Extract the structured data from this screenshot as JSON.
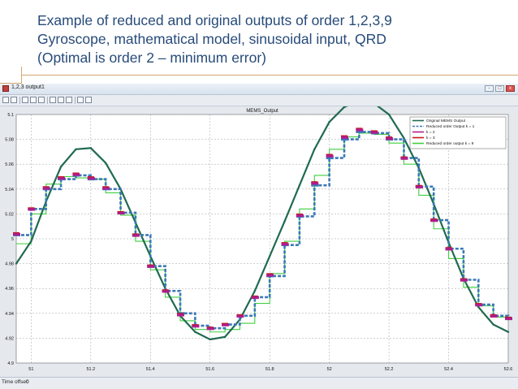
{
  "slide": {
    "title_lines": [
      "Example of reduced and original outputs of order 1,2,3,9",
      "Gyroscope, mathematical model, sinusoidal input, QRD",
      "(Optimal is order 2 – minimum error)"
    ]
  },
  "window": {
    "title": "1,2,3 output1",
    "controls": {
      "minimize": "-",
      "maximize": "□",
      "close": "x"
    },
    "toolbar_icons": [
      "print-icon",
      "settings-icon",
      "zoom-in-icon",
      "zoom-x-icon",
      "zoom-y-icon",
      "autoscale-icon",
      "save-axes-icon",
      "restore-axes-icon",
      "parameters-icon",
      "dock-icon"
    ],
    "status": {
      "label": "Time offset:",
      "value": "0"
    }
  },
  "chart_data": {
    "type": "line",
    "title": "MEMS_Output",
    "xlim": [
      50.95,
      52.6
    ],
    "ylim": [
      4.9,
      5.1
    ],
    "x_ticks": [
      51,
      51.2,
      51.4,
      51.6,
      51.8,
      52,
      52.2,
      52.4,
      52.6
    ],
    "x_tick_labels": [
      "51",
      "51.2",
      "51.4",
      "51.6",
      "51.8",
      "52",
      "52.2",
      "52.4",
      "52.6"
    ],
    "y_ticks": [
      4.9,
      4.92,
      4.94,
      4.96,
      4.98,
      5,
      5.02,
      5.04,
      5.06,
      5.08,
      5.1
    ],
    "y_tick_labels": [
      "4.9",
      "4.92",
      "4.94",
      "4.96",
      "4.98",
      "5",
      "5.02",
      "5.04",
      "5.06",
      "5.08",
      "5.1"
    ],
    "grid": true,
    "legend_position": "top-right",
    "series": [
      {
        "name": "Original MEMS Output",
        "color": "#1f6b50",
        "style": "solid-markers",
        "x": [
          50.95,
          51.0,
          51.05,
          51.1,
          51.15,
          51.2,
          51.25,
          51.3,
          51.35,
          51.4,
          51.45,
          51.5,
          51.55,
          51.6,
          51.65,
          51.7,
          51.75,
          51.8,
          51.85,
          51.9,
          51.95,
          52.0,
          52.05,
          52.1,
          52.15,
          52.2,
          52.25,
          52.3,
          52.35,
          52.4,
          52.45,
          52.5,
          52.55,
          52.6
        ],
        "y": [
          4.98,
          4.998,
          5.03,
          5.058,
          5.072,
          5.073,
          5.061,
          5.04,
          5.013,
          4.986,
          4.96,
          4.938,
          4.925,
          4.919,
          4.921,
          4.935,
          4.958,
          4.986,
          5.014,
          5.043,
          5.072,
          5.094,
          5.106,
          5.111,
          5.109,
          5.1,
          5.081,
          5.057,
          5.028,
          4.997,
          4.968,
          4.945,
          4.931,
          4.925
        ]
      },
      {
        "name": "Reduced order Output k = 1",
        "color": "#3a78b8",
        "style": "dashed",
        "x": [
          50.95,
          51.0,
          51.05,
          51.1,
          51.15,
          51.2,
          51.25,
          51.3,
          51.35,
          51.4,
          51.45,
          51.5,
          51.55,
          51.6,
          51.65,
          51.7,
          51.75,
          51.8,
          51.85,
          51.9,
          51.95,
          52.0,
          52.05,
          52.1,
          52.15,
          52.2,
          52.25,
          52.3,
          52.35,
          52.4,
          52.45,
          52.5,
          52.55,
          52.6
        ],
        "y": [
          5.003,
          5.024,
          5.04,
          5.048,
          5.051,
          5.048,
          5.04,
          5.021,
          5.003,
          4.978,
          4.958,
          4.94,
          4.93,
          4.928,
          4.931,
          4.938,
          4.953,
          4.97,
          4.995,
          5.018,
          5.043,
          5.065,
          5.08,
          5.086,
          5.085,
          5.08,
          5.065,
          5.042,
          5.015,
          4.992,
          4.967,
          4.947,
          4.938,
          4.936
        ]
      },
      {
        "name": "k = 2",
        "color": "#b01c8c",
        "style": "markers",
        "x": [
          50.95,
          51.0,
          51.05,
          51.1,
          51.15,
          51.2,
          51.25,
          51.3,
          51.35,
          51.4,
          51.45,
          51.5,
          51.55,
          51.6,
          51.65,
          51.7,
          51.75,
          51.8,
          51.85,
          51.9,
          51.95,
          52.0,
          52.05,
          52.1,
          52.15,
          52.2,
          52.25,
          52.3,
          52.35,
          52.4,
          52.45,
          52.5,
          52.55,
          52.6
        ],
        "y": [
          5.003,
          5.023,
          5.04,
          5.048,
          5.051,
          5.048,
          5.04,
          5.02,
          5.002,
          4.977,
          4.957,
          4.938,
          4.929,
          4.927,
          4.93,
          4.937,
          4.952,
          4.97,
          4.995,
          5.018,
          5.044,
          5.066,
          5.081,
          5.087,
          5.085,
          5.08,
          5.064,
          5.041,
          5.014,
          4.991,
          4.966,
          4.946,
          4.937,
          4.935
        ]
      },
      {
        "name": "k = 3",
        "color": "#c41818",
        "style": "markers",
        "x": [
          50.95,
          51.0,
          51.05,
          51.1,
          51.15,
          51.2,
          51.25,
          51.3,
          51.35,
          51.4,
          51.45,
          51.5,
          51.55,
          51.6,
          51.65,
          51.7,
          51.75,
          51.8,
          51.85,
          51.9,
          51.95,
          52.0,
          52.05,
          52.1,
          52.15,
          52.2,
          52.25,
          52.3,
          52.35,
          52.4,
          52.45,
          52.5,
          52.55,
          52.6
        ],
        "y": [
          5.004,
          5.024,
          5.041,
          5.049,
          5.052,
          5.049,
          5.041,
          5.021,
          5.003,
          4.978,
          4.958,
          4.939,
          4.93,
          4.928,
          4.931,
          4.938,
          4.953,
          4.971,
          4.996,
          5.019,
          5.045,
          5.067,
          5.082,
          5.088,
          5.086,
          5.081,
          5.065,
          5.042,
          5.015,
          4.992,
          4.967,
          4.947,
          4.938,
          4.936
        ]
      },
      {
        "name": "Reduced order output k = 9",
        "color": "#3fcf3f",
        "style": "step",
        "x": [
          50.95,
          51.0,
          51.05,
          51.1,
          51.15,
          51.2,
          51.25,
          51.3,
          51.35,
          51.4,
          51.45,
          51.5,
          51.55,
          51.6,
          51.65,
          51.7,
          51.75,
          51.8,
          51.85,
          51.9,
          51.95,
          52.0,
          52.05,
          52.1,
          52.15,
          52.2,
          52.25,
          52.3,
          52.35,
          52.4,
          52.45,
          52.5,
          52.55,
          52.6
        ],
        "y": [
          4.996,
          5.02,
          5.044,
          5.05,
          5.049,
          5.048,
          5.037,
          5.019,
          4.998,
          4.975,
          4.953,
          4.934,
          4.927,
          4.925,
          4.927,
          4.932,
          4.948,
          4.972,
          4.998,
          5.024,
          5.051,
          5.072,
          5.082,
          5.085,
          5.084,
          5.077,
          5.06,
          5.035,
          5.008,
          4.984,
          4.961,
          4.946,
          4.937,
          4.934
        ]
      }
    ]
  }
}
